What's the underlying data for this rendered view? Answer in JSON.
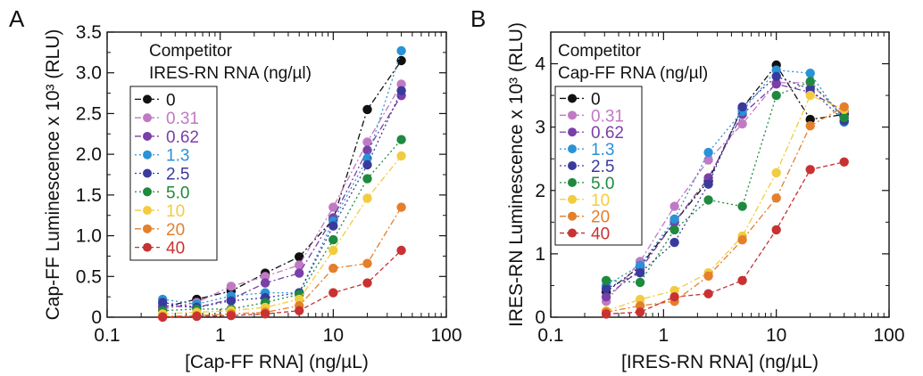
{
  "chart_data": [
    {
      "type": "line",
      "panel_label": "A",
      "xlabel": "[Cap-FF RNA] (ng/µL)",
      "ylabel": "Cap-FF Luminescence x 10³ (RLU)",
      "xscale": "log",
      "xlim": [
        0.1,
        100
      ],
      "ylim": [
        0,
        3.5
      ],
      "x_ticks": [
        "0.1",
        "1",
        "10",
        "100"
      ],
      "y_ticks": [
        "0",
        "0.5",
        "1.0",
        "1.5",
        "2.0",
        "2.5",
        "3.0",
        "3.5"
      ],
      "annotation": [
        "Competitor",
        "IRES-RN RNA (ng/µl)"
      ],
      "legend_placement": "upper-left",
      "x": [
        0.31,
        0.62,
        1.25,
        2.5,
        5,
        10,
        20,
        40
      ],
      "series": [
        {
          "name": "0",
          "color": "#111111",
          "dash": "dash-dot",
          "values": [
            0.12,
            0.22,
            0.32,
            0.54,
            0.74,
            1.2,
            2.55,
            3.15
          ]
        },
        {
          "name": "0.31",
          "color": "#c07ac4",
          "dash": "dash-dot",
          "values": [
            0.1,
            0.18,
            0.38,
            0.5,
            0.64,
            1.35,
            2.15,
            2.86
          ]
        },
        {
          "name": "0.62",
          "color": "#7a3fa8",
          "dash": "dash-dot",
          "values": [
            0.14,
            0.12,
            0.22,
            0.42,
            0.54,
            1.22,
            2.05,
            2.72
          ]
        },
        {
          "name": "1.3",
          "color": "#2a92d6",
          "dash": "dot",
          "values": [
            0.22,
            0.16,
            0.26,
            0.3,
            0.3,
            1.18,
            1.95,
            3.27
          ]
        },
        {
          "name": "2.5",
          "color": "#3a3a9e",
          "dash": "dot",
          "values": [
            0.18,
            0.12,
            0.2,
            0.24,
            0.3,
            1.12,
            1.87,
            2.78
          ]
        },
        {
          "name": "5.0",
          "color": "#1e8a3e",
          "dash": "dot",
          "values": [
            0.08,
            0.1,
            0.1,
            0.18,
            0.28,
            0.95,
            1.7,
            2.18
          ]
        },
        {
          "name": "10",
          "color": "#f2cc40",
          "dash": "dash-dot",
          "values": [
            0.04,
            0.06,
            0.08,
            0.12,
            0.22,
            0.82,
            1.46,
            1.98
          ]
        },
        {
          "name": "20",
          "color": "#e47f2c",
          "dash": "dash-dot",
          "values": [
            0.01,
            0.02,
            0.04,
            0.06,
            0.14,
            0.6,
            0.66,
            1.35
          ]
        },
        {
          "name": "40",
          "color": "#c83232",
          "dash": "dash",
          "values": [
            0.0,
            0.01,
            0.02,
            0.04,
            0.08,
            0.3,
            0.42,
            0.82
          ]
        }
      ]
    },
    {
      "type": "line",
      "panel_label": "B",
      "xlabel": "[IRES-RN RNA] (ng/µL)",
      "ylabel": "IRES-RN Luminescence x 10³ (RLU)",
      "xscale": "log",
      "xlim": [
        0.1,
        100
      ],
      "ylim": [
        0,
        4.5
      ],
      "x_ticks": [
        "0.1",
        "1",
        "10",
        "100"
      ],
      "y_ticks": [
        "0",
        "1",
        "2",
        "3",
        "4"
      ],
      "annotation": [
        "Competitor",
        "Cap-FF RNA (ng/µl)"
      ],
      "legend_placement": "upper-left",
      "x": [
        0.31,
        0.62,
        1.25,
        2.5,
        5,
        10,
        20,
        40
      ],
      "series": [
        {
          "name": "0",
          "color": "#111111",
          "dash": "dash-dot",
          "values": [
            0.4,
            0.8,
            1.5,
            2.15,
            3.3,
            3.98,
            3.12,
            3.2
          ]
        },
        {
          "name": "0.31",
          "color": "#c07ac4",
          "dash": "dash-dot",
          "values": [
            0.25,
            0.88,
            1.75,
            2.48,
            3.05,
            3.7,
            3.7,
            3.15
          ]
        },
        {
          "name": "0.62",
          "color": "#7a3fa8",
          "dash": "dash-dot",
          "values": [
            0.32,
            0.75,
            1.5,
            2.2,
            3.2,
            3.68,
            3.55,
            3.25
          ]
        },
        {
          "name": "1.3",
          "color": "#2a92d6",
          "dash": "dot",
          "values": [
            0.5,
            0.82,
            1.55,
            2.6,
            3.25,
            3.9,
            3.85,
            3.08
          ]
        },
        {
          "name": "2.5",
          "color": "#3a3a9e",
          "dash": "dot",
          "values": [
            0.45,
            0.7,
            1.18,
            2.1,
            3.32,
            3.8,
            3.6,
            3.1
          ]
        },
        {
          "name": "5.0",
          "color": "#1e8a3e",
          "dash": "dot",
          "values": [
            0.58,
            0.55,
            1.38,
            1.85,
            1.75,
            3.5,
            3.72,
            3.15
          ]
        },
        {
          "name": "10",
          "color": "#f2cc40",
          "dash": "dash-dot",
          "values": [
            0.1,
            0.28,
            0.42,
            0.7,
            1.28,
            2.28,
            3.5,
            3.28
          ]
        },
        {
          "name": "20",
          "color": "#e47f2c",
          "dash": "dash-dot",
          "values": [
            0.08,
            0.18,
            0.25,
            0.65,
            1.22,
            1.88,
            3.02,
            3.32
          ]
        },
        {
          "name": "40",
          "color": "#c83232",
          "dash": "dash",
          "values": [
            0.05,
            0.08,
            0.32,
            0.37,
            0.58,
            1.38,
            2.33,
            2.45
          ]
        }
      ]
    }
  ]
}
